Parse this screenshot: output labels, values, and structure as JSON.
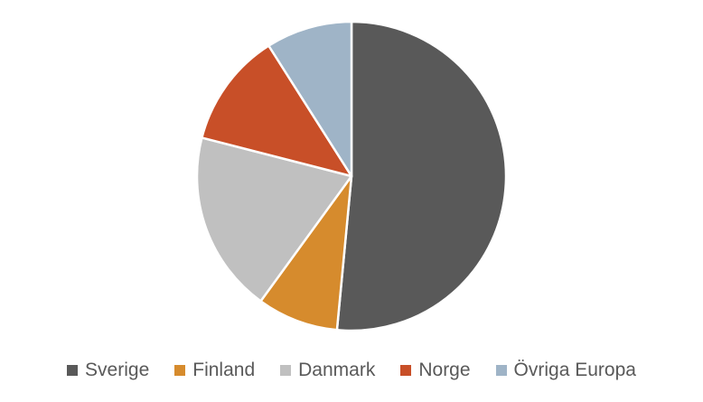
{
  "chart_data": {
    "type": "pie",
    "title": "",
    "start_angle_deg": 0,
    "direction": "clockwise",
    "legend_position": "bottom",
    "slices": [
      {
        "label": "Sverige",
        "value": 51.5,
        "color": "#595959"
      },
      {
        "label": "Finland",
        "value": 8.5,
        "color": "#D68B2D"
      },
      {
        "label": "Danmark",
        "value": 19.0,
        "color": "#C0C0C0"
      },
      {
        "label": "Norge",
        "value": 12.0,
        "color": "#C84F28"
      },
      {
        "label": "Övriga Europa",
        "value": 9.0,
        "color": "#9FB4C7"
      }
    ]
  }
}
